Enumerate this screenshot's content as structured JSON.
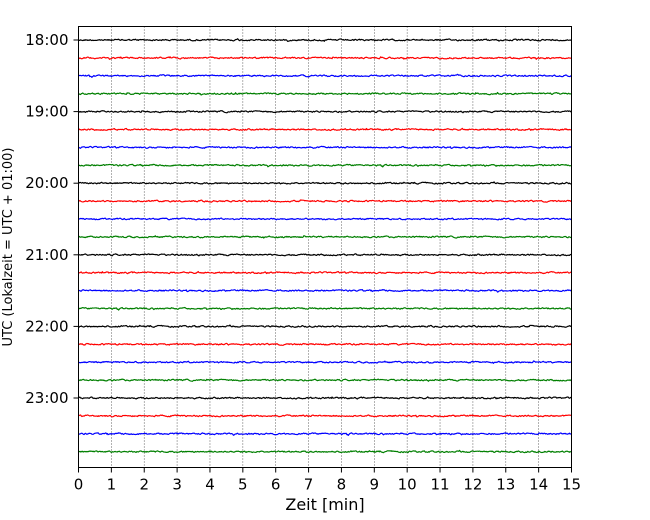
{
  "chart_data": {
    "type": "line",
    "title": "",
    "xlabel": "Zeit  [min]",
    "ylabel": "UTC (Lokalzeit = UTC + 01:00)",
    "xlim": [
      0,
      15
    ],
    "x_ticks": [
      "0",
      "1",
      "2",
      "3",
      "4",
      "5",
      "6",
      "7",
      "8",
      "9",
      "10",
      "11",
      "12",
      "13",
      "14",
      "15"
    ],
    "y_ticks": [
      "18:00",
      "19:00",
      "20:00",
      "21:00",
      "22:00",
      "23:00"
    ],
    "trace_start_times": [
      "18:00",
      "18:15",
      "18:30",
      "18:45",
      "19:00",
      "19:15",
      "19:30",
      "19:45",
      "20:00",
      "20:15",
      "20:30",
      "20:45",
      "21:00",
      "21:15",
      "21:30",
      "21:45",
      "22:00",
      "22:15",
      "22:30",
      "22:45",
      "23:00",
      "23:15",
      "23:30",
      "23:45"
    ],
    "trace_duration_min": 15,
    "colors_cycle": [
      "#000000",
      "#ff0000",
      "#0000ff",
      "#007f00"
    ],
    "grid": "vertical dotted at each minute",
    "legend": "none"
  }
}
